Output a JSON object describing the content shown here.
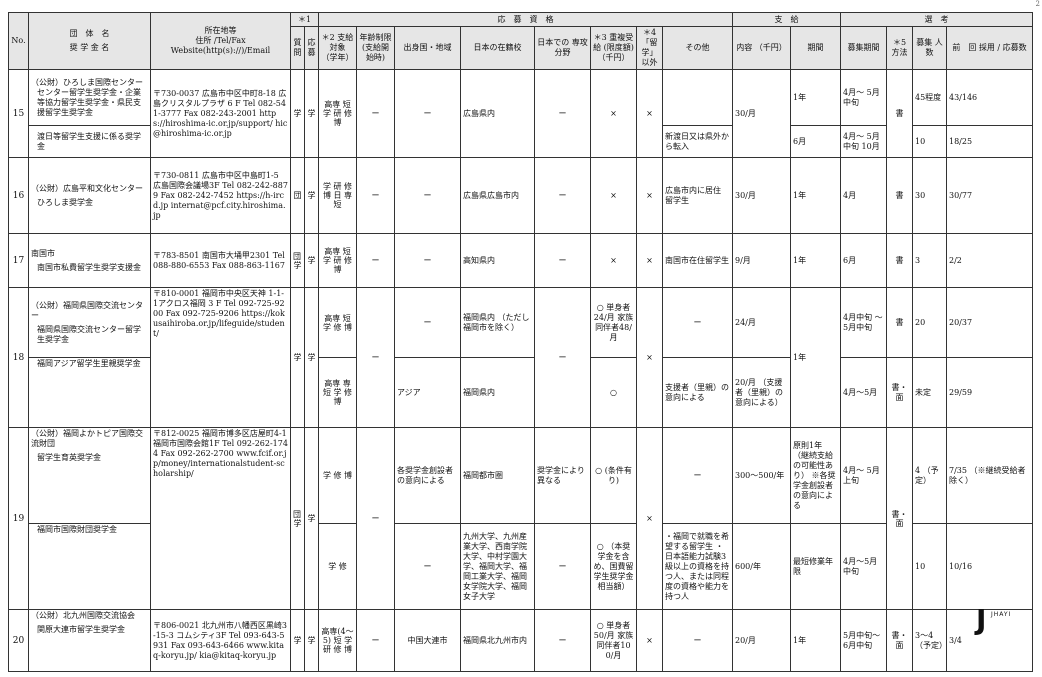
{
  "page_number": "2",
  "header": {
    "no": "No.",
    "org_name": "団　体　名",
    "sch_name": "奨 学 金 名",
    "address_head": "所在地等",
    "address_sub": "住所 /Tel/Fax",
    "address_web": "Website(http(s)://)/Email",
    "star1": "＊1",
    "g_shikaku": "応　募　資　格",
    "g_kyuyo": "支　給",
    "g_senko": "選　考",
    "col_shitsumon": "質問",
    "col_oubo": "応募",
    "col_taisho": "＊2 支給対象 （学年）",
    "col_nenrei": "年齢制限 (支給開始時)",
    "col_shusshin": "出身国・地域",
    "col_zaiseki": "日本の在籍校",
    "col_senko": "日本での 専攻分野",
    "col_chofuku": "＊3 重複受給 (限度額) （千円）",
    "col_ryugaku": "＊4 「留学」 以外",
    "col_sonota": "その他",
    "col_naiyo": "内容 （千円）",
    "col_kikan": "期間",
    "col_boshu": "募集期間",
    "col_hoho": "＊5 方法",
    "col_ninzu": "募集 人数",
    "col_zenkai": "前　回 採用 / 応募数"
  },
  "rows": {
    "r15": {
      "no": "15",
      "org": "（公財）ひろしま国際センター",
      "sch_a": "センター留学生奨学金・企業等協力留学生奨学金・県民支援留学生奨学金",
      "sch_b": "渡日等留学生支援に係る奨学金",
      "address": "〒730-0037 広島市中区中町8-18 広島クリスタルプラザ 6 F Tel 082-541-3777 Fax 082-243-2001 https://hiroshima-ic.or.jp/support/ hic@hiroshima-ic.or.jp",
      "shitsumon": "学",
      "oubo": "学",
      "taisho": "高専 短 学 研 修 博",
      "nenrei": "ー",
      "shusshin": "ー",
      "zaiseki": "広島県内",
      "senko": "ー",
      "chofuku": "×",
      "ryugaku": "×",
      "sonota_a": "",
      "sonota_b": "新渡日又は県外から転入",
      "naiyo": "30/月",
      "kikan_a": "1年",
      "kikan_b": "6月",
      "boshu_a": "4月～ 5月中旬",
      "boshu_b": "4月～ 5月中旬 10月",
      "hoho": "書",
      "ninzu_a": "45程度",
      "ninzu_b": "10",
      "zenkai_a": "43/146",
      "zenkai_b": "18/25"
    },
    "r16": {
      "no": "16",
      "org": "（公財）広島平和文化センター",
      "sch": "ひろしま奨学金",
      "address": "〒730-0811 広島市中区中島町1-5 広島国際会議場3F Tel 082-242-8879 Fax 082-242-7452 https://h-ircd.jp internat@pcf.city.hiroshima.jp",
      "shitsumon": "団",
      "oubo": "学",
      "taisho": "学 研 修 博 日 専 短",
      "nenrei": "ー",
      "shusshin": "ー",
      "zaiseki": "広島県広島市内",
      "senko": "ー",
      "chofuku": "×",
      "ryugaku": "×",
      "sonota": "広島市内に居住 留学生",
      "naiyo": "30/月",
      "kikan": "1年",
      "boshu": "4月",
      "hoho": "書",
      "ninzu": "30",
      "zenkai": "30/77"
    },
    "r17": {
      "no": "17",
      "org": "南国市",
      "sch": "南国市私費留学生奨学支援金",
      "address": "〒783-8501 南国市大埇甲2301 Tel 088-880-6553 Fax 088-863-1167",
      "shitsumon": "団・学",
      "oubo": "学",
      "taisho": "高専 短 学 研 修 博",
      "nenrei": "ー",
      "shusshin": "ー",
      "zaiseki": "高知県内",
      "senko": "ー",
      "chofuku": "×",
      "ryugaku": "×",
      "sonota": "南国市在住留学生",
      "naiyo": "9/月",
      "kikan": "1年",
      "boshu": "6月",
      "hoho": "書",
      "ninzu": "3",
      "zenkai": "2/2"
    },
    "r18": {
      "no": "18",
      "org": "（公財）福岡県国際交流センター",
      "sch_a": "福岡県国際交流センター留学生奨学金",
      "sch_b": "福岡アジア留学生里親奨学金",
      "address": "〒810-0001 福岡市中央区天神 1-1-1アクロス福岡 3 F Tel 092-725-9200 Fax 092-725-9206 https://kokusaihiroba.or.jp/lifeguide/student/",
      "shitsumon": "学",
      "oubo": "学",
      "taisho_a": "高専 短 学 修 博",
      "taisho_b": "高専 専 短 学 修 博",
      "nenrei": "ー",
      "shusshin_a": "ー",
      "shusshin_b": "アジア",
      "zaiseki_a": "福岡県内 （ただし福岡市を除く）",
      "zaiseki_b": "福岡県内",
      "senko": "ー",
      "chofuku_a": "○ 単身者 24/月 家族同伴者48/月",
      "chofuku_b": "○",
      "ryugaku": "×",
      "sonota_a": "ー",
      "sonota_b": "支援者（里親）の意向による",
      "naiyo_a": "24/月",
      "naiyo_b": "20/月 （支援者（里親）の意向による）",
      "kikan": "1年",
      "boshu_a": "4月中旬 ～5月中旬",
      "boshu_b": "4月～5月",
      "hoho_a": "書",
      "hoho_b": "書・面",
      "ninzu_a": "20",
      "ninzu_b": "未定",
      "zenkai_a": "20/37",
      "zenkai_b": "29/59"
    },
    "r19": {
      "no": "19",
      "org": "（公財）福岡よかトピア国際交流財団",
      "sch_a": "留学生育英奨学金",
      "sch_b": "福岡市国際財団奨学金",
      "address": "〒812-0025 福岡市博多区店屋町4-1 福岡市国際会館1F Tel 092-262-1744 Fax 092-262-2700 www.fcif.or.jp/money/internationalstudent-scholarship/",
      "shitsumon": "団・学",
      "oubo": "学",
      "taisho_a": "学 修 博",
      "taisho_b": "学 修",
      "nenrei": "ー",
      "shusshin_a": "各奨学金創設者の意向による",
      "shusshin_b": "ー",
      "zaiseki_a": "福岡都市圏",
      "zaiseki_b": "九州大学、九州産業大学、西南学院大学、中村学園大学、福岡大学、福岡工業大学、福岡女学院大学、福岡女子大学",
      "senko_a": "奨学金により異なる",
      "senko_b": "ー",
      "chofuku_a": "○ (条件有り)",
      "chofuku_b": "○ （本奨学金を含め、国費留学生奨学金相当額）",
      "ryugaku": "×",
      "sonota_a": "ー",
      "sonota_b": "・福岡で就職を希望する留学生 ・日本語能力試験3級以上の資格を持つ人、または同程度の資格や能力を持つ人",
      "naiyo_a": "300～500/年",
      "naiyo_b": "600/年",
      "kikan_a": "原則1年 （継続支給の可能性あり） ※各奨学金創設者の意向による",
      "kikan_b": "最短修業年限",
      "boshu_a": "4月～ 5月上旬",
      "boshu_b": "4月～5月中旬",
      "hoho": "書・面",
      "ninzu_a": "4 （予定）",
      "ninzu_b": "10",
      "zenkai_a": "7/35 （※継続受給者除く）",
      "zenkai_b": "10/16"
    },
    "r20": {
      "no": "20",
      "org": "（公財）北九州国際交流協会",
      "sch": "関原大連市留学生奨学金",
      "address": "〒806-0021 北九州市八幡西区黒崎3-15-3 コムシティ3F Tel 093-643-5931 Fax 093-643-6466 www.kitaq-koryu.jp/ kia@kitaq-koryu.jp",
      "shitsumon": "学",
      "oubo": "学",
      "taisho": "高専(4～5) 短 学 研 修 博",
      "nenrei": "ー",
      "shusshin": "中国大連市",
      "zaiseki": "福岡県北九州市内",
      "senko": "ー",
      "chofuku": "○ 単身者 50/月 家族同伴者100/月",
      "ryugaku": "×",
      "sonota": "ー",
      "naiyo": "20/月",
      "kikan": "1年",
      "boshu": "5月中旬～ 6月中旬",
      "hoho": "書・面",
      "ninzu": "3～4 （予定）",
      "zenkai": "3/4"
    }
  },
  "logo": {
    "mark": "J",
    "text": "JHAYI"
  }
}
